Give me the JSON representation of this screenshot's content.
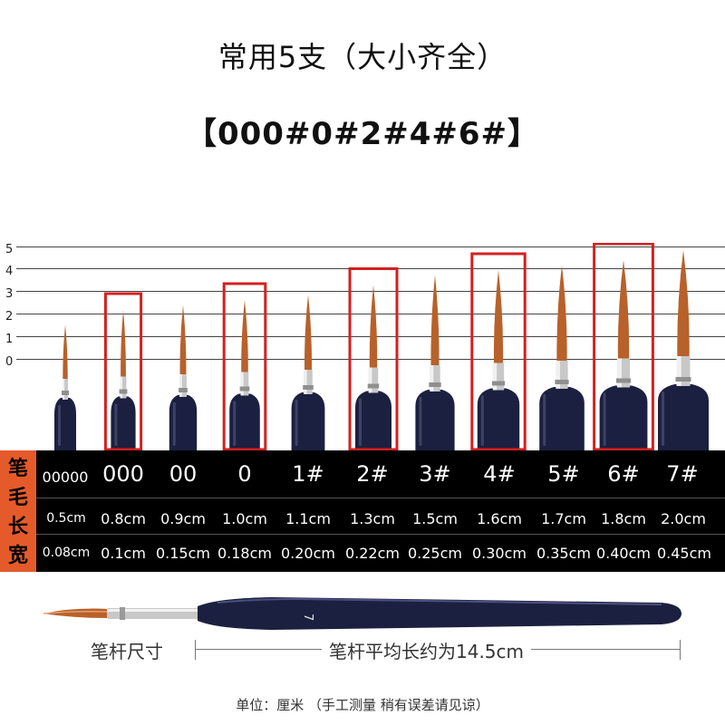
{
  "title_line1": "常用5支（大小齐全）",
  "title_line2": "【000#0#2#4#6#】",
  "scale_labels": [
    "5",
    "4",
    "3",
    "2",
    "1",
    "0"
  ],
  "side_label": [
    "笔",
    "毛",
    "长",
    "宽"
  ],
  "sizes": [
    {
      "name": "00000",
      "length": "0.5cm",
      "width": "0.08cm",
      "highlighted": false
    },
    {
      "name": "000",
      "length": "0.8cm",
      "width": "0.1cm",
      "highlighted": true
    },
    {
      "name": "00",
      "length": "0.9cm",
      "width": "0.15cm",
      "highlighted": false
    },
    {
      "name": "0",
      "length": "1.0cm",
      "width": "0.18cm",
      "highlighted": true
    },
    {
      "name": "1#",
      "length": "1.1cm",
      "width": "0.20cm",
      "highlighted": false
    },
    {
      "name": "2#",
      "length": "1.3cm",
      "width": "0.22cm",
      "highlighted": true
    },
    {
      "name": "3#",
      "length": "1.5cm",
      "width": "0.25cm",
      "highlighted": false
    },
    {
      "name": "4#",
      "length": "1.6cm",
      "width": "0.30cm",
      "highlighted": true
    },
    {
      "name": "5#",
      "length": "1.7cm",
      "width": "0.35cm",
      "highlighted": false
    },
    {
      "name": "6#",
      "length": "1.8cm",
      "width": "0.40cm",
      "highlighted": true
    },
    {
      "name": "7#",
      "length": "2.0cm",
      "width": "0.45cm",
      "highlighted": false
    }
  ],
  "handle_number": "7",
  "measure_label": "笔杆尺寸",
  "measure_text": "笔杆平均长约为14.5cm",
  "unit_note": "单位：厘米 （手工测量 稍有误差请见谅）",
  "colors": {
    "highlight": "#d42020",
    "handle": "#1c2040",
    "bristle": "#b8612a",
    "side_bar": "#e55a2a"
  }
}
